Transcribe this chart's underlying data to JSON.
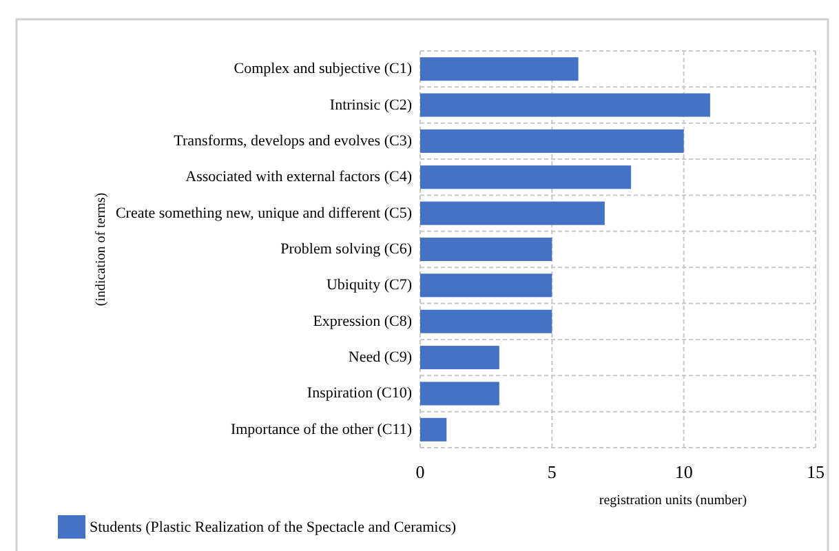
{
  "chart_data": {
    "type": "bar",
    "orientation": "horizontal",
    "ylabel": "(indication of terms)",
    "xlabel": "registration units (number)",
    "categories": [
      "Complex and subjective (C1)",
      "Intrinsic (C2)",
      "Transforms, develops and evolves (C3)",
      "Associated with external factors (C4)",
      "Create something new, unique and different (C5)",
      "Problem solving (C6)",
      "Ubiquity (C7)",
      "Expression (C8)",
      "Need (C9)",
      "Inspiration (C10)",
      "Importance of the other (C11)"
    ],
    "series": [
      {
        "name": "Students (Plastic Realization of the Spectacle and Ceramics)",
        "color": "#4472c4",
        "values": [
          6,
          11,
          10,
          8,
          7,
          5,
          5,
          5,
          3,
          3,
          1
        ]
      }
    ],
    "xlim": [
      0,
      15
    ],
    "xticks": [
      0,
      5,
      10,
      15
    ],
    "grid": true,
    "legend": "bottom left"
  }
}
